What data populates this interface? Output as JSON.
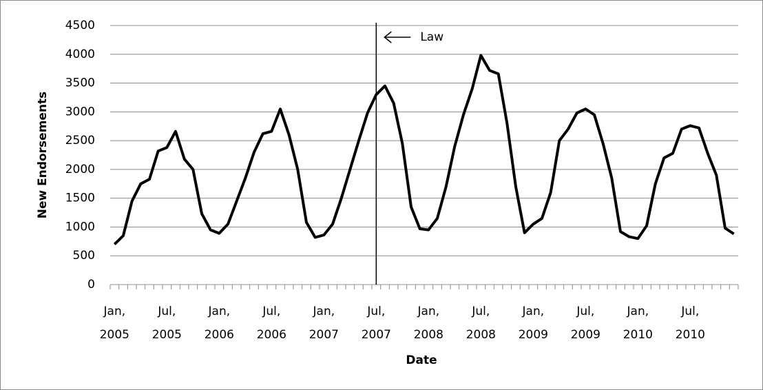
{
  "chart_data": {
    "type": "line",
    "y_label": "New Endorsements",
    "x_label": "Date",
    "categories": [
      "Jan, 2005",
      null,
      null,
      null,
      null,
      null,
      "Jul, 2005",
      null,
      null,
      null,
      null,
      null,
      "Jan, 2006",
      null,
      null,
      null,
      null,
      null,
      "Jul, 2006",
      null,
      null,
      null,
      null,
      null,
      "Jan, 2007",
      null,
      null,
      null,
      null,
      null,
      "Jul, 2007",
      null,
      null,
      null,
      null,
      null,
      "Jan, 2008",
      null,
      null,
      null,
      null,
      null,
      "Jul, 2008",
      null,
      null,
      null,
      null,
      null,
      "Jan, 2009",
      null,
      null,
      null,
      null,
      null,
      "Jul, 2009",
      null,
      null,
      null,
      null,
      null,
      "Jan, 2010",
      null,
      null,
      null,
      null,
      null,
      "Jul, 2010",
      null,
      null,
      null,
      null,
      null
    ],
    "values": [
      700,
      850,
      1450,
      1750,
      1830,
      2320,
      2380,
      2660,
      2180,
      2000,
      1230,
      950,
      890,
      1050,
      1450,
      1850,
      2300,
      2620,
      2660,
      3050,
      2600,
      2000,
      1080,
      820,
      860,
      1050,
      1500,
      2000,
      2500,
      2980,
      3300,
      3450,
      3150,
      2450,
      1350,
      970,
      950,
      1150,
      1700,
      2400,
      2950,
      3400,
      3980,
      3720,
      3660,
      2800,
      1700,
      900,
      1050,
      1150,
      1600,
      2500,
      2700,
      2980,
      3050,
      2950,
      2450,
      1850,
      920,
      830,
      800,
      1020,
      1750,
      2200,
      2280,
      2700,
      2760,
      2720,
      2280,
      1900,
      980,
      880
    ],
    "color": "#000000",
    "ylim": [
      0,
      4500
    ],
    "yticks": [
      0,
      500,
      1000,
      1500,
      2000,
      2500,
      3000,
      3500,
      4000,
      4500
    ],
    "grid": true,
    "annotation": {
      "text": "Law",
      "at": 30
    }
  }
}
